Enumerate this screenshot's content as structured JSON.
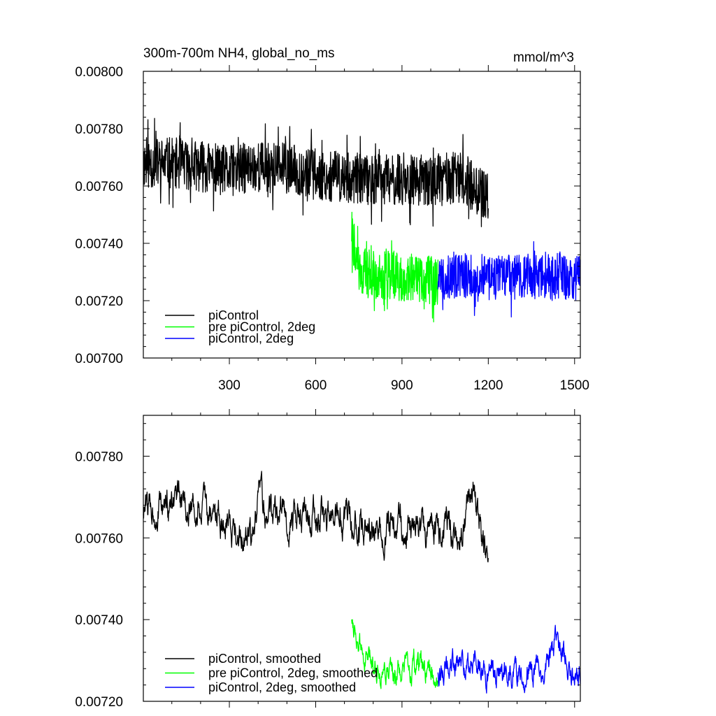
{
  "chart_data": [
    {
      "type": "line",
      "title": "300m-700m NH4, global_no_ms",
      "units": "mmol/m^3",
      "xlim": [
        1,
        1520
      ],
      "ylim": [
        0.007,
        0.008
      ],
      "xticks": [
        300,
        600,
        900,
        1200,
        1500
      ],
      "xtick_labels": [
        "300",
        "600",
        "900",
        "1200",
        "1500"
      ],
      "yticks": [
        0.007,
        0.0072,
        0.0074,
        0.0076,
        0.0078,
        0.008
      ],
      "ytick_labels": [
        "0.00700",
        "0.00720",
        "0.00740",
        "0.00760",
        "0.00780",
        "0.00800"
      ],
      "legend_placement": "lower-left",
      "series": [
        {
          "name": "piControl",
          "color": "#000000",
          "x_start": 1,
          "x_end": 1200,
          "x": [
            1,
            100,
            200,
            300,
            400,
            500,
            600,
            700,
            800,
            900,
            1000,
            1100,
            1150,
            1200
          ],
          "values": [
            0.00768,
            0.00768,
            0.00767,
            0.00765,
            0.00767,
            0.00766,
            0.00764,
            0.00763,
            0.00762,
            0.00762,
            0.00762,
            0.00763,
            0.0076,
            0.00755
          ],
          "noise": 9e-05,
          "noise_seed": 11
        },
        {
          "name": "pre piControl, 2deg",
          "color": "#00ff00",
          "x_start": 725,
          "x_end": 1025,
          "x": [
            725,
            740,
            760,
            800,
            850,
            900,
            950,
            1000,
            1025
          ],
          "values": [
            0.00745,
            0.00735,
            0.0073,
            0.00729,
            0.00729,
            0.00728,
            0.00728,
            0.00727,
            0.00727
          ],
          "noise": 8.5e-05,
          "noise_seed": 22
        },
        {
          "name": "piControl, 2deg",
          "color": "#0000ff",
          "x_start": 1025,
          "x_end": 1520,
          "x": [
            1025,
            1100,
            1200,
            1300,
            1400,
            1500,
            1520
          ],
          "values": [
            0.00728,
            0.00729,
            0.00728,
            0.00728,
            0.00729,
            0.00728,
            0.00728
          ],
          "noise": 8e-05,
          "noise_seed": 33
        }
      ]
    },
    {
      "type": "line",
      "title": "",
      "xlim": [
        1,
        1520
      ],
      "ylim": [
        0.0072,
        0.0079
      ],
      "xticks": [
        300,
        600,
        900,
        1200,
        1500
      ],
      "yticks": [
        0.0072,
        0.0074,
        0.0076,
        0.0078
      ],
      "ytick_labels": [
        "0.00720",
        "0.00740",
        "0.00760",
        "0.00780"
      ],
      "legend_placement": "lower-left",
      "series": [
        {
          "name": "piControl, smoothed",
          "color": "#000000",
          "x_start": 1,
          "x_end": 1200,
          "x": [
            1,
            100,
            200,
            300,
            380,
            400,
            500,
            600,
            700,
            800,
            900,
            1000,
            1100,
            1150,
            1190,
            1200
          ],
          "values": [
            0.00767,
            0.00768,
            0.00767,
            0.00764,
            0.00758,
            0.00768,
            0.00765,
            0.00765,
            0.00764,
            0.00761,
            0.00763,
            0.00762,
            0.00762,
            0.0077,
            0.00755,
            0.00754
          ],
          "noise": 2.5e-05,
          "noise_seed": 44
        },
        {
          "name": "pre piControl, 2deg, smoothed",
          "color": "#00ff00",
          "x_start": 725,
          "x_end": 1025,
          "x": [
            725,
            740,
            760,
            800,
            850,
            900,
            950,
            1000,
            1025
          ],
          "values": [
            0.00741,
            0.00738,
            0.00731,
            0.00729,
            0.00728,
            0.00727,
            0.00728,
            0.00726,
            0.00727
          ],
          "noise": 2e-05,
          "noise_seed": 55
        },
        {
          "name": "piControl, 2deg, smoothed",
          "color": "#0000ff",
          "x_start": 1025,
          "x_end": 1520,
          "x": [
            1025,
            1100,
            1200,
            1300,
            1400,
            1430,
            1500,
            1520
          ],
          "values": [
            0.00728,
            0.00729,
            0.00728,
            0.00727,
            0.00728,
            0.00734,
            0.00727,
            0.00726
          ],
          "noise": 2e-05,
          "noise_seed": 66
        }
      ]
    }
  ]
}
